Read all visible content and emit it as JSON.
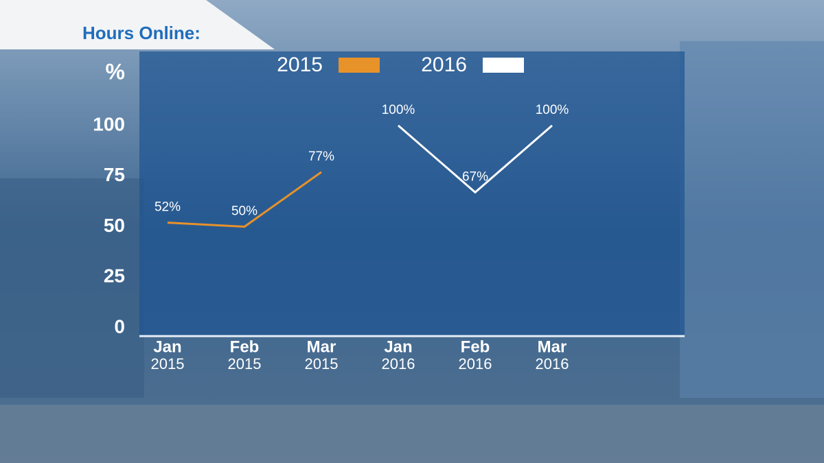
{
  "chart_data": {
    "type": "line",
    "title": "Hours Online:",
    "y_label": "%",
    "categories": [
      [
        "Jan",
        "2015"
      ],
      [
        "Feb",
        "2015"
      ],
      [
        "Mar",
        "2015"
      ],
      [
        "Jan",
        "2016"
      ],
      [
        "Feb",
        "2016"
      ],
      [
        "Mar",
        "2016"
      ]
    ],
    "series": [
      {
        "name": "2015",
        "color": "#e8922a",
        "values": [
          52,
          50,
          77,
          null,
          null,
          null
        ],
        "value_labels": [
          "52%",
          "50%",
          "77%",
          null,
          null,
          null
        ]
      },
      {
        "name": "2016",
        "color": "#ffffff",
        "values": [
          null,
          null,
          null,
          100,
          67,
          100
        ],
        "value_labels": [
          null,
          null,
          null,
          "100%",
          "67%",
          "100%"
        ]
      }
    ],
    "ylim": [
      0,
      100
    ],
    "yticks": [
      0,
      25,
      50,
      75,
      100
    ]
  }
}
